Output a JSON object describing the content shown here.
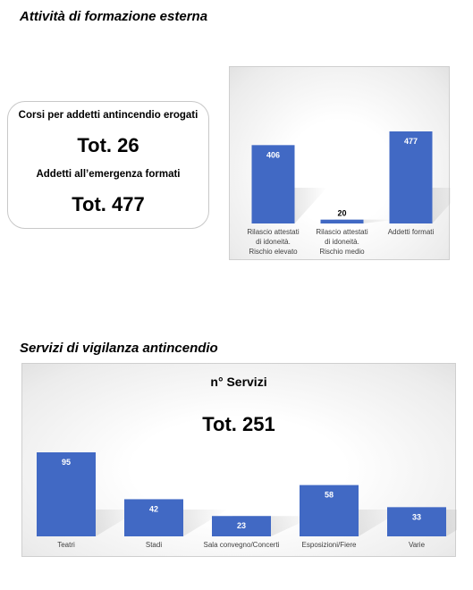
{
  "section1": {
    "title": "Attività di formazione esterna",
    "card": {
      "label1": "Corsi per addetti antincendio erogati",
      "total1": "Tot.  26",
      "label2": "Addetti all’emergenza formati",
      "total2": "Tot.  477"
    }
  },
  "section2": {
    "title": "Servizi di vigilanza antincendio",
    "chart_title": "n° Servizi",
    "chart_total": "Tot.  251"
  },
  "colors": {
    "bar": "#4169c4",
    "bar_dark": "#2f4e9e"
  },
  "chart_data": [
    {
      "type": "bar",
      "categories": [
        [
          "Rilascio attestati",
          "di idoneità.",
          "Rischio elevato"
        ],
        [
          "Rilascio attestati",
          "di idoneità.",
          "Rischio medio"
        ],
        [
          "Addetti formati"
        ]
      ],
      "values": [
        406,
        20,
        477
      ],
      "ylim": [
        0,
        477
      ],
      "grid": false,
      "data_labels": true
    },
    {
      "type": "bar",
      "title": "n° Servizi",
      "categories": [
        [
          "Teatri"
        ],
        [
          "Stadi"
        ],
        [
          "Sala convegno/Concerti"
        ],
        [
          "Esposizioni/Fiere"
        ],
        [
          "Varie"
        ]
      ],
      "values": [
        95,
        42,
        23,
        58,
        33
      ],
      "ylim": [
        0,
        95
      ],
      "grid": false,
      "data_labels": true
    }
  ]
}
